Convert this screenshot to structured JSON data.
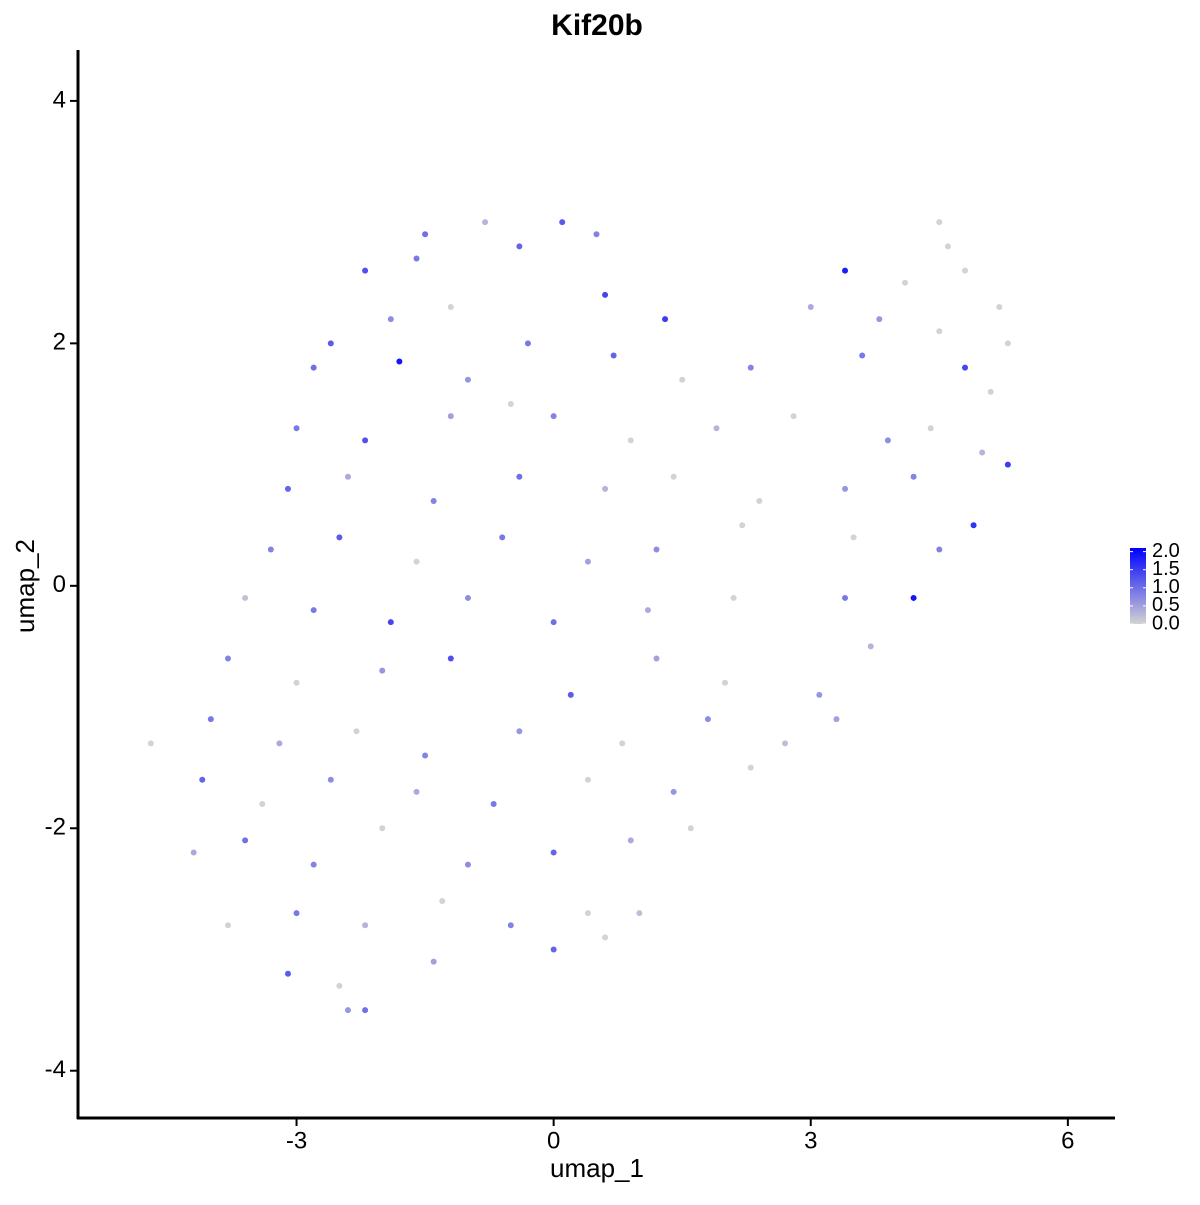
{
  "chart_data": {
    "type": "scatter",
    "title": "Kif20b",
    "xlabel": "umap_1",
    "ylabel": "umap_2",
    "xlim": [
      -5.55,
      6.55
    ],
    "ylim": [
      -4.39,
      4.42
    ],
    "xticks": [
      -3,
      0,
      3,
      6
    ],
    "yticks": [
      -4,
      -2,
      0,
      2,
      4
    ],
    "low_color": "#d3d3d3",
    "high_color": "#0000ff",
    "colorlim": [
      0,
      2.1
    ],
    "colorticks": [
      {
        "value": 0,
        "label": "0.0"
      },
      {
        "value": 0.5,
        "label": "0.5"
      },
      {
        "value": 1,
        "label": "1.0"
      },
      {
        "value": 1.5,
        "label": "1.5"
      },
      {
        "value": 2,
        "label": "2.0"
      }
    ],
    "x": [
      -1.5,
      -0.8,
      0.1,
      0.5,
      4.5,
      4.6,
      -2.2,
      -1.6,
      -0.4,
      0.6,
      3.4,
      4.1,
      4.8,
      5.2,
      -2.6,
      -1.9,
      -1.2,
      -0.3,
      1.3,
      3.0,
      3.8,
      4.5,
      5.3,
      -2.8,
      -1.8,
      -1.0,
      -0.5,
      0.7,
      1.5,
      2.3,
      3.6,
      4.8,
      5.1,
      -3.0,
      -2.2,
      -1.2,
      0,
      0.9,
      1.9,
      2.8,
      3.9,
      4.4,
      5.0,
      -3.1,
      -2.4,
      -1.4,
      -0.4,
      0.6,
      1.4,
      2.4,
      3.4,
      4.2,
      5.3,
      -3.3,
      -2.5,
      -1.6,
      -0.6,
      0.4,
      1.2,
      2.2,
      3.5,
      4.5,
      4.9,
      -3.6,
      -2.8,
      -1.9,
      -1.0,
      0,
      1.1,
      2.1,
      3.4,
      4.2,
      -3.8,
      -3.0,
      -2.0,
      -1.2,
      0.2,
      1.2,
      2.0,
      3.1,
      3.7,
      -4.7,
      -4.0,
      -3.2,
      -2.3,
      -1.5,
      -0.4,
      0.8,
      1.8,
      2.7,
      3.3,
      -4.1,
      -3.4,
      -2.6,
      -1.6,
      -0.7,
      0.4,
      1.4,
      2.3,
      -4.2,
      -3.6,
      -2.8,
      -2.0,
      -1.0,
      0,
      0.9,
      1.6,
      -3.8,
      -3.0,
      -2.2,
      -1.3,
      -0.5,
      0.4,
      1.0,
      -3.1,
      -2.5,
      -1.4,
      0,
      0.6,
      -2.2,
      -2.4
    ],
    "y": [
      2.9,
      3.0,
      3.0,
      2.9,
      3.0,
      2.8,
      2.6,
      2.7,
      2.8,
      2.4,
      2.6,
      2.5,
      2.6,
      2.3,
      2.0,
      2.2,
      2.3,
      2.0,
      2.2,
      2.3,
      2.2,
      2.1,
      2.0,
      1.8,
      1.85,
      1.7,
      1.5,
      1.9,
      1.7,
      1.8,
      1.9,
      1.8,
      1.6,
      1.3,
      1.2,
      1.4,
      1.4,
      1.2,
      1.3,
      1.4,
      1.2,
      1.3,
      1.1,
      0.8,
      0.9,
      0.7,
      0.9,
      0.8,
      0.9,
      0.7,
      0.8,
      0.9,
      1.0,
      0.3,
      0.4,
      0.2,
      0.4,
      0.2,
      0.3,
      0.5,
      0.4,
      0.3,
      0.5,
      -0.1,
      -0.2,
      -0.3,
      -0.1,
      -0.3,
      -0.2,
      -0.1,
      -0.1,
      -0.1,
      -0.6,
      -0.8,
      -0.7,
      -0.6,
      -0.9,
      -0.6,
      -0.8,
      -0.9,
      -0.5,
      -1.3,
      -1.1,
      -1.3,
      -1.2,
      -1.4,
      -1.2,
      -1.3,
      -1.1,
      -1.3,
      -1.1,
      -1.6,
      -1.8,
      -1.6,
      -1.7,
      -1.8,
      -1.6,
      -1.7,
      -1.5,
      -2.2,
      -2.1,
      -2.3,
      -2.0,
      -2.3,
      -2.2,
      -2.1,
      -2.0,
      -2.8,
      -2.7,
      -2.8,
      -2.6,
      -2.8,
      -2.7,
      -2.7,
      -3.2,
      -3.3,
      -3.1,
      -3.0,
      -2.9,
      -3.5,
      -3.5
    ],
    "values": [
      1.0,
      0.3,
      1.2,
      0.8,
      0,
      0,
      1.3,
      0.9,
      1.1,
      1.4,
      1.8,
      0,
      0,
      0,
      1.2,
      0.7,
      0,
      0.9,
      1.5,
      0.4,
      0.6,
      0,
      0,
      1.0,
      1.9,
      0.6,
      0,
      1.1,
      0,
      0.8,
      0.9,
      1.4,
      0,
      0.9,
      1.3,
      0.5,
      0.8,
      0,
      0.3,
      0,
      0.7,
      0,
      0.3,
      1.1,
      0.4,
      0.8,
      1.0,
      0.3,
      0,
      0,
      0.6,
      0.8,
      1.5,
      0.8,
      1.2,
      0,
      0.9,
      0.5,
      0.7,
      0,
      0,
      0.8,
      1.6,
      0.2,
      0.9,
      1.4,
      0.7,
      1.0,
      0.4,
      0,
      0.9,
      1.9,
      0.8,
      0,
      0.6,
      1.3,
      1.2,
      0.5,
      0,
      0.6,
      0.3,
      0,
      0.9,
      0.4,
      0,
      0.8,
      0.6,
      0,
      0.7,
      0.2,
      0.5,
      1.1,
      0,
      0.7,
      0.4,
      0.9,
      0,
      0.6,
      0,
      0.4,
      1.0,
      0.8,
      0,
      0.7,
      1.1,
      0.4,
      0,
      0,
      0.9,
      0.3,
      0,
      0.8,
      0,
      0.2,
      1.2,
      0,
      0.5,
      1.1,
      0,
      1.0,
      0.6
    ]
  }
}
